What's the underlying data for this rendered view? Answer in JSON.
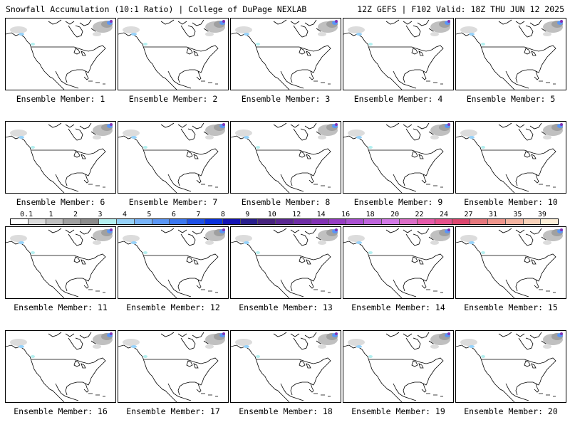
{
  "header": {
    "left": "Snowfall Accumulation (10:1 Ratio) | College of DuPage NEXLAB",
    "right": "12Z GEFS | F102 Valid: 18Z THU JUN 12 2025"
  },
  "panels": [
    {
      "label": "Ensemble Member: 1"
    },
    {
      "label": "Ensemble Member: 2"
    },
    {
      "label": "Ensemble Member: 3"
    },
    {
      "label": "Ensemble Member: 4"
    },
    {
      "label": "Ensemble Member: 5"
    },
    {
      "label": "Ensemble Member: 6"
    },
    {
      "label": "Ensemble Member: 7"
    },
    {
      "label": "Ensemble Member: 8"
    },
    {
      "label": "Ensemble Member: 9"
    },
    {
      "label": "Ensemble Member: 10"
    },
    {
      "label": "Ensemble Member: 11"
    },
    {
      "label": "Ensemble Member: 12"
    },
    {
      "label": "Ensemble Member: 13"
    },
    {
      "label": "Ensemble Member: 14"
    },
    {
      "label": "Ensemble Member: 15"
    },
    {
      "label": "Ensemble Member: 16"
    },
    {
      "label": "Ensemble Member: 17"
    },
    {
      "label": "Ensemble Member: 18"
    },
    {
      "label": "Ensemble Member: 19"
    },
    {
      "label": "Ensemble Member: 20"
    }
  ],
  "colorbar": {
    "ticks": [
      "0.1",
      "1",
      "2",
      "3",
      "4",
      "5",
      "6",
      "7",
      "8",
      "9",
      "10",
      "12",
      "14",
      "16",
      "18",
      "20",
      "22",
      "24",
      "27",
      "31",
      "35",
      "39"
    ],
    "colors": [
      "#ffffff",
      "#dcdcdc",
      "#c0c0c0",
      "#a0a0a0",
      "#8c8c8c",
      "#b4f0f0",
      "#96d2fa",
      "#78b4fa",
      "#5a96f5",
      "#3c78f0",
      "#1e50e6",
      "#0a32dc",
      "#1414b4",
      "#281e8c",
      "#46237d",
      "#5a2891",
      "#6e2da5",
      "#8232b4",
      "#963cc3",
      "#aa50d2",
      "#be64dc",
      "#d278e6",
      "#dc6ec8",
      "#e65aaa",
      "#e6508c",
      "#dc466e",
      "#e6787d",
      "#f0968c",
      "#f5b4a0",
      "#fad2b9",
      "#fff0d7"
    ]
  },
  "chart_data": {
    "type": "map",
    "title": "Snowfall Accumulation (10:1 Ratio) | College of DuPage NEXLAB",
    "subtitle": "12Z GEFS | F102 Valid: 18Z THU JUN 12 2025",
    "legend_ticks": [
      0.1,
      1,
      2,
      3,
      4,
      5,
      6,
      7,
      8,
      9,
      10,
      12,
      14,
      16,
      18,
      20,
      22,
      24,
      27,
      31,
      35,
      39
    ],
    "panel_count": 20,
    "snowfall_regions": [
      "Alaska",
      "Greenland",
      "Canadian Arctic",
      "Baffin Island"
    ]
  }
}
